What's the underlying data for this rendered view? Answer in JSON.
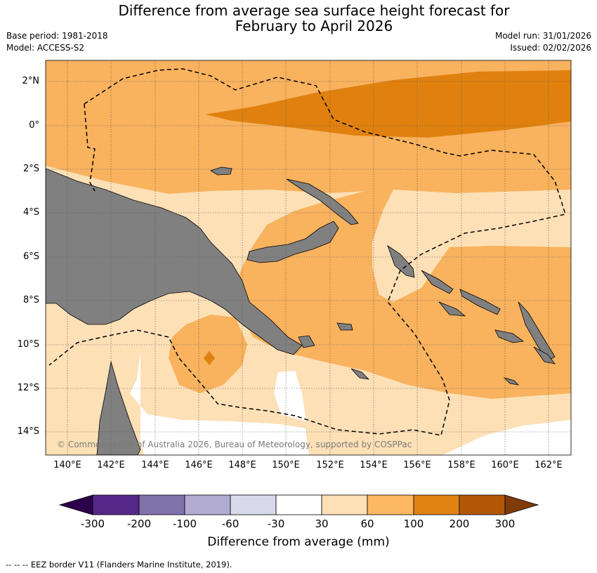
{
  "header": {
    "title_line1": "Difference from average sea surface height forecast for",
    "title_line2": "February to April 2026",
    "base_period": "Base period: 1981-2018",
    "model": "Model: ACCESS-S2",
    "model_run": "Model run: 31/01/2026",
    "issued": "Issued: 02/02/2026"
  },
  "map": {
    "lat_labels": [
      "2°N",
      "0°",
      "2°S",
      "4°S",
      "6°S",
      "8°S",
      "10°S",
      "12°S",
      "14°S"
    ],
    "lon_labels": [
      "140°E",
      "142°E",
      "144°E",
      "146°E",
      "148°E",
      "150°E",
      "152°E",
      "154°E",
      "156°E",
      "158°E",
      "160°E",
      "162°E"
    ],
    "copyright": "© Commonwealth of Australia 2026, Bureau of Meteorology, supported by COSPPac",
    "colors": {
      "land": "#808080",
      "band_30_60": "#fde0b6",
      "band_60_100": "#f9b25e",
      "band_100_200": "#e0810f",
      "band_0": "#ffffff"
    }
  },
  "colorbar": {
    "ticks": [
      "-300",
      "-200",
      "-100",
      "-60",
      "-30",
      "30",
      "60",
      "100",
      "200",
      "300"
    ],
    "colors": [
      "#2d004b",
      "#542788",
      "#8073ac",
      "#b2abd2",
      "#d8daeb",
      "#ffffff",
      "#fee0b6",
      "#fdb863",
      "#e08214",
      "#b35806",
      "#7f3b08"
    ],
    "label": "Difference from average (mm)"
  },
  "footnote": "--  --  -- EEZ border V11 (Flanders Marine Institute, 2019)."
}
